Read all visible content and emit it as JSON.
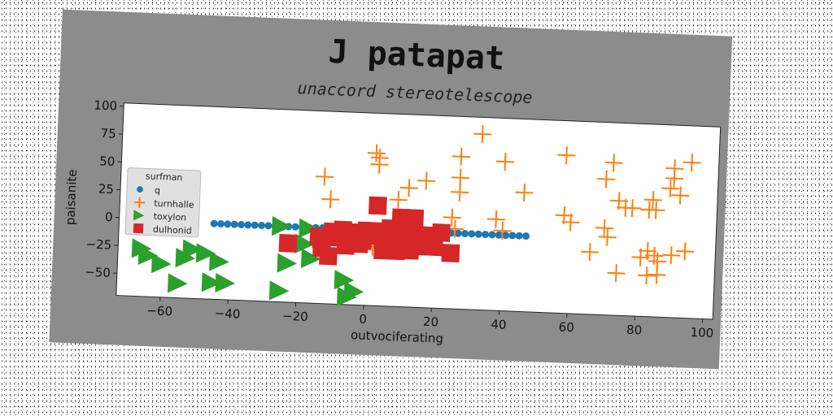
{
  "chart_data": {
    "type": "scatter",
    "title": "J patapat",
    "subtitle": "unaccord stereotelescope",
    "xlabel": "outvociferating",
    "ylabel": "paisanite",
    "xlim": [
      -73,
      103
    ],
    "ylim": [
      -70,
      103
    ],
    "xticks": [
      -60,
      -40,
      -20,
      0,
      20,
      40,
      60,
      80,
      100
    ],
    "yticks": [
      -50,
      -25,
      0,
      25,
      50,
      75,
      100
    ],
    "grid": false,
    "legend": {
      "title": "surfman",
      "placement": "center-left"
    },
    "colors": {
      "frame": "#8c8c8c",
      "plot_bg": "#ffffff",
      "q": "#1f77b4",
      "turnhalle": "#ff7f0e",
      "toxylon": "#2ca02c",
      "dulhonid": "#d62728"
    },
    "series": [
      {
        "name": "q",
        "marker": "circle",
        "color": "#1f77b4",
        "points": [
          [
            -45,
            -2
          ],
          [
            -43,
            -2
          ],
          [
            -41,
            -2
          ],
          [
            -39,
            -2
          ],
          [
            -37,
            -2
          ],
          [
            -35,
            -2
          ],
          [
            -33,
            -2
          ],
          [
            -31,
            -2
          ],
          [
            -29,
            -2
          ],
          [
            -27,
            -2
          ],
          [
            -25,
            -2
          ],
          [
            -23,
            -2
          ],
          [
            -21,
            -2
          ],
          [
            -19,
            -2
          ],
          [
            -17,
            -2
          ],
          [
            -15,
            -2
          ],
          [
            -13,
            -2
          ],
          [
            -11,
            -2
          ],
          [
            -9,
            -2
          ],
          [
            -7,
            -2
          ],
          [
            -5,
            -2
          ],
          [
            -3,
            -2
          ],
          [
            -1,
            -2
          ],
          [
            1,
            -2
          ],
          [
            3,
            -2
          ],
          [
            5,
            -2
          ],
          [
            7,
            -2
          ],
          [
            9,
            -2
          ],
          [
            11,
            -2
          ],
          [
            13,
            -2
          ],
          [
            15,
            -2
          ],
          [
            17,
            -2
          ],
          [
            19,
            -2
          ],
          [
            21,
            -2
          ],
          [
            23,
            -2
          ],
          [
            25,
            -2
          ],
          [
            27,
            -2
          ],
          [
            29,
            -2
          ],
          [
            31,
            -2
          ],
          [
            33,
            -2
          ],
          [
            35,
            -2
          ],
          [
            37,
            -2
          ],
          [
            39,
            -2
          ],
          [
            41,
            -2
          ],
          [
            43,
            -2
          ],
          [
            45,
            -2
          ],
          [
            47,
            -2
          ]
        ]
      },
      {
        "name": "turnhalle",
        "marker": "plus",
        "color": "#ff7f0e",
        "points": [
          [
            33,
            88
          ],
          [
            2,
            67
          ],
          [
            3,
            63
          ],
          [
            3,
            57
          ],
          [
            27,
            67
          ],
          [
            40,
            64
          ],
          [
            58,
            72
          ],
          [
            72,
            67
          ],
          [
            70,
            52
          ],
          [
            90,
            64
          ],
          [
            90,
            55
          ],
          [
            89,
            46
          ],
          [
            95,
            70
          ],
          [
            -13,
            44
          ],
          [
            -11,
            24
          ],
          [
            12,
            37
          ],
          [
            17,
            44
          ],
          [
            27,
            48
          ],
          [
            27,
            35
          ],
          [
            46,
            37
          ],
          [
            9,
            26
          ],
          [
            25,
            12
          ],
          [
            26,
            2
          ],
          [
            38,
            12
          ],
          [
            40,
            2
          ],
          [
            58,
            18
          ],
          [
            60,
            12
          ],
          [
            70,
            8
          ],
          [
            71,
            0
          ],
          [
            74,
            33
          ],
          [
            76,
            27
          ],
          [
            78,
            27
          ],
          [
            84,
            35
          ],
          [
            83,
            26
          ],
          [
            85,
            26
          ],
          [
            92,
            40
          ],
          [
            66,
            -14
          ],
          [
            74,
            -32
          ],
          [
            81,
            -17
          ],
          [
            83,
            -11
          ],
          [
            83,
            -33
          ],
          [
            85,
            -15
          ],
          [
            86,
            -20
          ],
          [
            86,
            -32
          ],
          [
            90,
            -14
          ],
          [
            94,
            -10
          ],
          [
            2,
            -17
          ]
        ]
      },
      {
        "name": "toxylon",
        "marker": "triangle-right",
        "color": "#2ca02c",
        "points": [
          [
            -25,
            -2
          ],
          [
            -17,
            -3
          ],
          [
            -13,
            -12
          ],
          [
            -18,
            -17
          ],
          [
            -66,
            -27
          ],
          [
            -64,
            -33
          ],
          [
            -60,
            -40
          ],
          [
            -53,
            -34
          ],
          [
            -51,
            -26
          ],
          [
            -47,
            -29
          ],
          [
            -43,
            -36
          ],
          [
            -55,
            -57
          ],
          [
            -45,
            -55
          ],
          [
            -41,
            -55
          ],
          [
            -23,
            -35
          ],
          [
            -16,
            -30
          ],
          [
            -6,
            -48
          ],
          [
            -3,
            -58
          ],
          [
            -5,
            -63
          ],
          [
            -25,
            -60
          ]
        ]
      },
      {
        "name": "dulhonid",
        "marker": "square",
        "color": "#d62728",
        "points": [
          [
            -23,
            -17
          ],
          [
            -13,
            -20
          ],
          [
            -11,
            -27
          ],
          [
            -14,
            -10
          ],
          [
            -10,
            -5
          ],
          [
            -7,
            -3
          ],
          [
            -5,
            -5
          ],
          [
            -3,
            -5
          ],
          [
            0,
            -3
          ],
          [
            2,
            -3
          ],
          [
            4,
            -7
          ],
          [
            5,
            -8
          ],
          [
            6,
            -12
          ],
          [
            8,
            -15
          ],
          [
            9,
            -20
          ],
          [
            11,
            -8
          ],
          [
            12,
            -13
          ],
          [
            13,
            -19
          ],
          [
            15,
            -15
          ],
          [
            16,
            -7
          ],
          [
            19,
            -5
          ],
          [
            22,
            -2
          ],
          [
            -6,
            -17
          ],
          [
            -2,
            -15
          ],
          [
            5,
            -20
          ],
          [
            10,
            -15
          ],
          [
            12,
            2
          ],
          [
            14,
            -3
          ],
          [
            17,
            -12
          ],
          [
            20,
            -15
          ],
          [
            3,
            20
          ],
          [
            10,
            10
          ],
          [
            14,
            10
          ],
          [
            25,
            -20
          ],
          [
            7,
            0
          ],
          [
            -1,
            -12
          ],
          [
            6,
            -5
          ],
          [
            -8,
            -10
          ]
        ]
      }
    ]
  }
}
